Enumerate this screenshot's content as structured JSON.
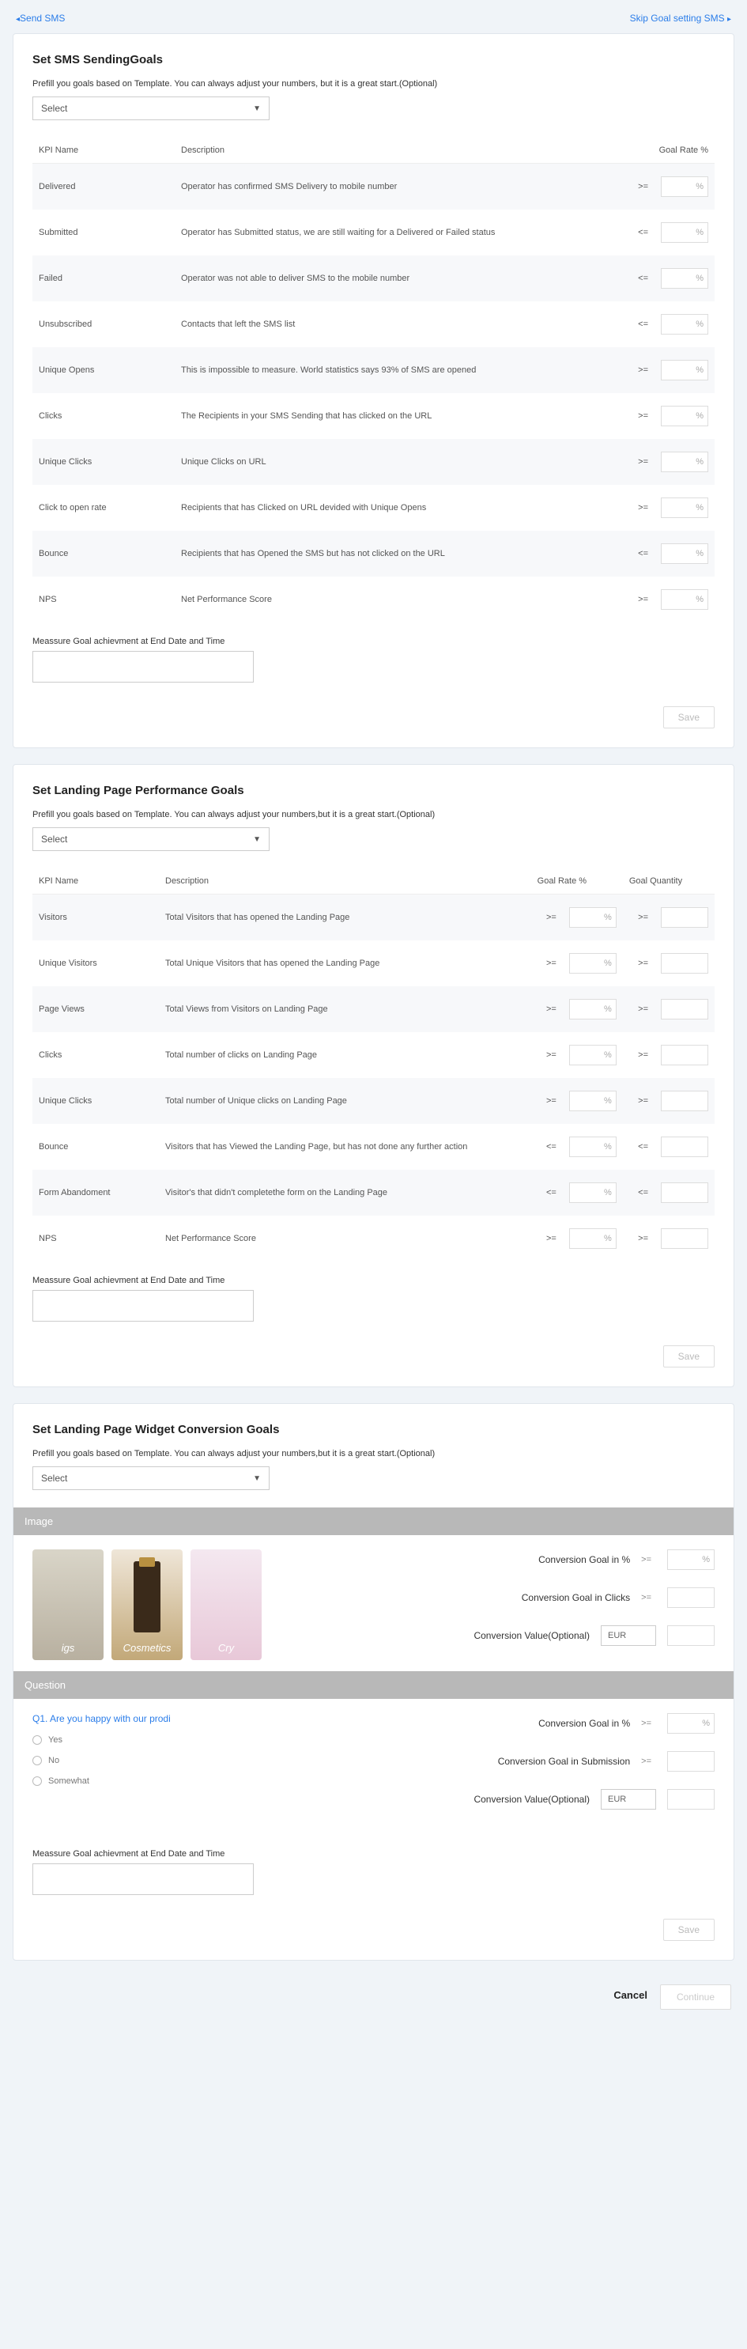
{
  "nav": {
    "back": "Send SMS",
    "skip": "Skip Goal setting SMS"
  },
  "card1": {
    "title": "Set SMS SendingGoals",
    "sub": "Prefill you goals based on Template. You can always adjust your numbers, but it is a great start.(Optional)",
    "select": "Select",
    "headers": {
      "kpi": "KPI Name",
      "desc": "Description",
      "rate": "Goal Rate %"
    },
    "rows": [
      {
        "kpi": "Delivered",
        "desc": "Operator has confirmed SMS Delivery to mobile number",
        "op": ">="
      },
      {
        "kpi": "Submitted",
        "desc": "Operator has Submitted status, we are still waiting for a Delivered or Failed status",
        "op": "<="
      },
      {
        "kpi": "Failed",
        "desc": "Operator was not able to deliver SMS to the mobile number",
        "op": "<="
      },
      {
        "kpi": "Unsubscribed",
        "desc": "Contacts that left the SMS list",
        "op": "<="
      },
      {
        "kpi": "Unique Opens",
        "desc": "This is impossible to measure. World statistics says 93% of SMS are opened",
        "op": ">="
      },
      {
        "kpi": "Clicks",
        "desc": "The Recipients in your SMS Sending that has clicked on the URL",
        "op": ">="
      },
      {
        "kpi": "Unique Clicks",
        "desc": "Unique Clicks on URL",
        "op": ">="
      },
      {
        "kpi": "Click to open rate",
        "desc": "Recipients that has Clicked on URL devided with Unique Opens",
        "op": ">="
      },
      {
        "kpi": "Bounce",
        "desc": "Recipients that has Opened the SMS but has not clicked on the URL",
        "op": "<="
      },
      {
        "kpi": "NPS",
        "desc": "Net Performance Score",
        "op": ">="
      }
    ],
    "measure_label": "Meassure Goal achievment at End Date and Time",
    "save": "Save"
  },
  "card2": {
    "title": "Set Landing Page Performance Goals",
    "sub": "Prefill you goals based on Template. You can always adjust your numbers,but it is a great start.(Optional)",
    "select": "Select",
    "headers": {
      "kpi": "KPI Name",
      "desc": "Description",
      "rate": "Goal Rate %",
      "qty": "Goal Quantity"
    },
    "rows": [
      {
        "kpi": "Visitors",
        "desc": "Total Visitors that has opened the Landing Page",
        "op1": ">=",
        "op2": ">="
      },
      {
        "kpi": "Unique Visitors",
        "desc": "Total Unique Visitors that has opened the Landing Page",
        "op1": ">=",
        "op2": ">="
      },
      {
        "kpi": "Page Views",
        "desc": "Total Views from Visitors on Landing Page",
        "op1": ">=",
        "op2": ">="
      },
      {
        "kpi": "Clicks",
        "desc": "Total number of clicks on Landing Page",
        "op1": ">=",
        "op2": ">="
      },
      {
        "kpi": "Unique Clicks",
        "desc": "Total number of Unique clicks on Landing Page",
        "op1": ">=",
        "op2": ">="
      },
      {
        "kpi": "Bounce",
        "desc": "Visitors that has Viewed the Landing Page, but has not done any further action",
        "op1": "<=",
        "op2": "<="
      },
      {
        "kpi": "Form Abandoment",
        "desc": "Visitor's that didn't completethe form on the Landing Page",
        "op1": "<=",
        "op2": "<="
      },
      {
        "kpi": "NPS",
        "desc": "Net Performance Score",
        "op1": ">=",
        "op2": ">="
      }
    ],
    "measure_label": "Meassure Goal achievment at End Date and Time",
    "save": "Save"
  },
  "card3": {
    "title": "Set Landing Page Widget Conversion Goals",
    "sub": "Prefill you goals based on Template. You can always adjust your numbers,but it is a great start.(Optional)",
    "select": "Select",
    "section_image": "Image",
    "thumbs": [
      "igs",
      "Cosmetics",
      "Cry"
    ],
    "conv_pct": "Conversion Goal in %",
    "conv_clicks": "Conversion Goal in Clicks",
    "conv_value": "Conversion Value(Optional)",
    "currency": "EUR",
    "op": ">=",
    "section_question": "Question",
    "q_title": "Q1. Are you happy with our prodi",
    "q_opts": [
      "Yes",
      "No",
      "Somewhat"
    ],
    "conv_submission": "Conversion Goal in Submission",
    "measure_label": "Meassure Goal achievment at End Date and Time",
    "save": "Save"
  },
  "footer": {
    "cancel": "Cancel",
    "continue": "Continue"
  },
  "pct": "%"
}
